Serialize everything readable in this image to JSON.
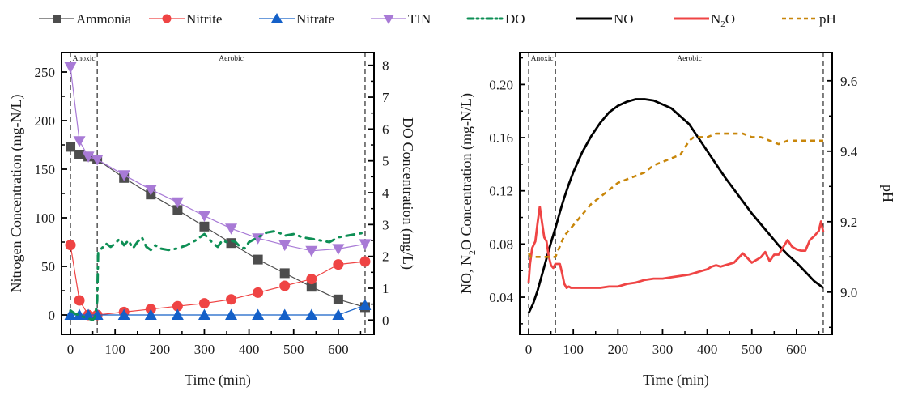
{
  "legend": [
    {
      "label": "Ammonia",
      "color": "#4d4d4d",
      "style": "line-square"
    },
    {
      "label": "Nitrite",
      "color": "#ef4444",
      "style": "line-circle"
    },
    {
      "label": "Nitrate",
      "color": "#1460c8",
      "style": "line-triangle-up"
    },
    {
      "label": "TIN",
      "color": "#a87ad6",
      "style": "line-triangle-down"
    },
    {
      "label": "DO",
      "color": "#0e8f55",
      "style": "dash-dot"
    },
    {
      "label": "NO",
      "color": "#000000",
      "style": "solid-thick"
    },
    {
      "label": "N₂O",
      "label_main": "N",
      "label_sub": "2",
      "label_tail": "O",
      "color": "#ef4444",
      "style": "solid-thick"
    },
    {
      "label": "pH",
      "color": "#c8860a",
      "style": "dashed"
    }
  ],
  "chart_data": [
    {
      "type": "line",
      "panel": "left",
      "title": "",
      "xlabel": "Time (min)",
      "ylabel": "Nitrogen Concentration (mg-N/L)",
      "y2label": "DO Concentration (mg/L)",
      "xlim": [
        -20,
        680
      ],
      "ylim": [
        -20,
        270
      ],
      "y2lim": [
        -0.45,
        8.4
      ],
      "xticks": [
        0,
        100,
        200,
        300,
        400,
        500,
        600
      ],
      "yticks": [
        0,
        50,
        100,
        150,
        200,
        250
      ],
      "y2ticks": [
        0,
        1,
        2,
        3,
        4,
        5,
        6,
        7,
        8
      ],
      "phase_lines": [
        0,
        60,
        660
      ],
      "phase_labels": [
        {
          "text": "Anoxic",
          "x": 30
        },
        {
          "text": "Aerobic",
          "x": 360
        }
      ],
      "grid": false,
      "legend_position": "top",
      "series": [
        {
          "name": "Ammonia",
          "axis": "left",
          "color": "#4d4d4d",
          "marker": "square",
          "x": [
            0,
            20,
            40,
            60,
            120,
            180,
            240,
            300,
            360,
            420,
            480,
            540,
            600,
            660
          ],
          "y": [
            173,
            165,
            163,
            160,
            141,
            124,
            108,
            91,
            74,
            57,
            43,
            29,
            16,
            8
          ]
        },
        {
          "name": "Nitrite",
          "axis": "left",
          "color": "#ef4444",
          "marker": "circle",
          "x": [
            0,
            20,
            40,
            60,
            120,
            180,
            240,
            300,
            360,
            420,
            480,
            540,
            600,
            660
          ],
          "y": [
            72,
            15,
            0,
            0,
            3,
            6,
            9,
            12,
            16,
            23,
            30,
            37,
            52,
            55
          ]
        },
        {
          "name": "Nitrate",
          "axis": "left",
          "color": "#1460c8",
          "marker": "triangle-up",
          "x": [
            0,
            20,
            40,
            60,
            120,
            180,
            240,
            300,
            360,
            420,
            480,
            540,
            600,
            660
          ],
          "y": [
            0,
            0,
            0,
            0,
            0,
            0,
            0,
            0,
            0,
            0,
            0,
            0,
            0,
            10
          ]
        },
        {
          "name": "TIN",
          "axis": "left",
          "color": "#a87ad6",
          "marker": "triangle-down",
          "x": [
            0,
            20,
            40,
            60,
            120,
            180,
            240,
            300,
            360,
            420,
            480,
            540,
            600,
            660
          ],
          "y": [
            255,
            179,
            163,
            160,
            144,
            129,
            116,
            102,
            89,
            79,
            72,
            66,
            68,
            73
          ]
        },
        {
          "name": "DO",
          "axis": "right",
          "color": "#0e8f55",
          "marker": "none",
          "x": [
            0,
            10,
            20,
            30,
            40,
            50,
            55,
            60,
            62,
            70,
            80,
            90,
            100,
            110,
            120,
            130,
            140,
            150,
            160,
            170,
            180,
            190,
            200,
            220,
            240,
            260,
            280,
            300,
            310,
            320,
            330,
            340,
            350,
            360,
            370,
            380,
            390,
            400,
            420,
            440,
            460,
            480,
            500,
            520,
            540,
            560,
            580,
            600,
            620,
            640,
            660
          ],
          "y": [
            0.3,
            0.2,
            0.15,
            0.1,
            0.05,
            0.0,
            0.1,
            0.6,
            2.1,
            2.25,
            2.4,
            2.3,
            2.4,
            2.55,
            2.35,
            2.5,
            2.25,
            2.45,
            2.6,
            2.3,
            2.2,
            2.35,
            2.25,
            2.2,
            2.25,
            2.35,
            2.5,
            2.7,
            2.55,
            2.4,
            2.3,
            2.5,
            2.45,
            2.5,
            2.45,
            2.3,
            2.25,
            2.45,
            2.6,
            2.75,
            2.8,
            2.65,
            2.7,
            2.6,
            2.55,
            2.5,
            2.45,
            2.6,
            2.65,
            2.7,
            2.75
          ]
        }
      ]
    },
    {
      "type": "line",
      "panel": "right",
      "title": "",
      "xlabel": "Time (min)",
      "ylabel": "NO, N2O Concentration (mg-N/L)",
      "y2label": "pH",
      "xlim": [
        -20,
        680
      ],
      "ylim": [
        0.012,
        0.224
      ],
      "y2lim": [
        8.88,
        9.68
      ],
      "xticks": [
        0,
        100,
        200,
        300,
        400,
        500,
        600
      ],
      "yticks": [
        0.04,
        0.08,
        0.12,
        0.16,
        0.2
      ],
      "ytick_labels": [
        "0.04",
        "0.08",
        "0.12",
        "0.16",
        "0.20"
      ],
      "y2ticks": [
        9.0,
        9.2,
        9.4,
        9.6
      ],
      "y2tick_labels": [
        "9.0",
        "9.2",
        "9.4",
        "9.6"
      ],
      "phase_lines": [
        0,
        60,
        660
      ],
      "phase_labels": [
        {
          "text": "Anoxic",
          "x": 30
        },
        {
          "text": "Aerobic",
          "x": 360
        }
      ],
      "grid": false,
      "legend_position": "top",
      "series": [
        {
          "name": "NO",
          "axis": "left",
          "color": "#000000",
          "x": [
            0,
            10,
            20,
            30,
            40,
            50,
            60,
            70,
            80,
            90,
            100,
            120,
            140,
            160,
            180,
            200,
            220,
            240,
            260,
            280,
            300,
            320,
            340,
            360,
            380,
            400,
            420,
            440,
            460,
            480,
            500,
            520,
            540,
            560,
            580,
            600,
            620,
            640,
            660
          ],
          "y": [
            0.028,
            0.035,
            0.045,
            0.057,
            0.069,
            0.081,
            0.092,
            0.104,
            0.115,
            0.125,
            0.134,
            0.149,
            0.161,
            0.171,
            0.179,
            0.184,
            0.187,
            0.189,
            0.189,
            0.188,
            0.185,
            0.182,
            0.176,
            0.17,
            0.16,
            0.15,
            0.14,
            0.13,
            0.121,
            0.112,
            0.103,
            0.095,
            0.087,
            0.079,
            0.072,
            0.066,
            0.059,
            0.052,
            0.047
          ]
        },
        {
          "name": "N2O",
          "axis": "left",
          "color": "#ef4444",
          "x": [
            0,
            3,
            8,
            15,
            20,
            25,
            30,
            35,
            40,
            45,
            50,
            55,
            60,
            65,
            70,
            75,
            80,
            85,
            90,
            95,
            100,
            120,
            140,
            160,
            180,
            200,
            220,
            240,
            260,
            280,
            300,
            320,
            340,
            360,
            370,
            380,
            390,
            400,
            410,
            420,
            430,
            440,
            460,
            480,
            500,
            510,
            520,
            530,
            540,
            550,
            560,
            580,
            590,
            600,
            610,
            620,
            630,
            640,
            650,
            655,
            660
          ],
          "y": [
            0.051,
            0.065,
            0.077,
            0.082,
            0.096,
            0.108,
            0.096,
            0.085,
            0.082,
            0.071,
            0.064,
            0.062,
            0.065,
            0.065,
            0.065,
            0.058,
            0.05,
            0.047,
            0.048,
            0.047,
            0.047,
            0.047,
            0.047,
            0.047,
            0.048,
            0.048,
            0.05,
            0.051,
            0.053,
            0.054,
            0.054,
            0.055,
            0.056,
            0.057,
            0.058,
            0.059,
            0.06,
            0.061,
            0.063,
            0.064,
            0.063,
            0.064,
            0.066,
            0.073,
            0.066,
            0.068,
            0.07,
            0.074,
            0.067,
            0.072,
            0.072,
            0.083,
            0.078,
            0.076,
            0.075,
            0.075,
            0.083,
            0.086,
            0.09,
            0.097,
            0.089
          ]
        },
        {
          "name": "pH",
          "axis": "right",
          "color": "#c8860a",
          "x": [
            0,
            5,
            10,
            20,
            30,
            40,
            50,
            60,
            70,
            80,
            100,
            120,
            140,
            160,
            180,
            200,
            220,
            240,
            260,
            280,
            300,
            320,
            340,
            350,
            360,
            370,
            380,
            400,
            420,
            440,
            460,
            480,
            500,
            520,
            540,
            560,
            580,
            600,
            620,
            640,
            660
          ],
          "y": [
            9.11,
            9.1,
            9.1,
            9.1,
            9.1,
            9.1,
            9.1,
            9.1,
            9.13,
            9.16,
            9.19,
            9.22,
            9.25,
            9.27,
            9.29,
            9.31,
            9.32,
            9.33,
            9.34,
            9.36,
            9.37,
            9.38,
            9.39,
            9.41,
            9.43,
            9.44,
            9.44,
            9.44,
            9.45,
            9.45,
            9.45,
            9.45,
            9.44,
            9.44,
            9.43,
            9.42,
            9.43,
            9.43,
            9.43,
            9.43,
            9.43
          ]
        }
      ]
    }
  ]
}
